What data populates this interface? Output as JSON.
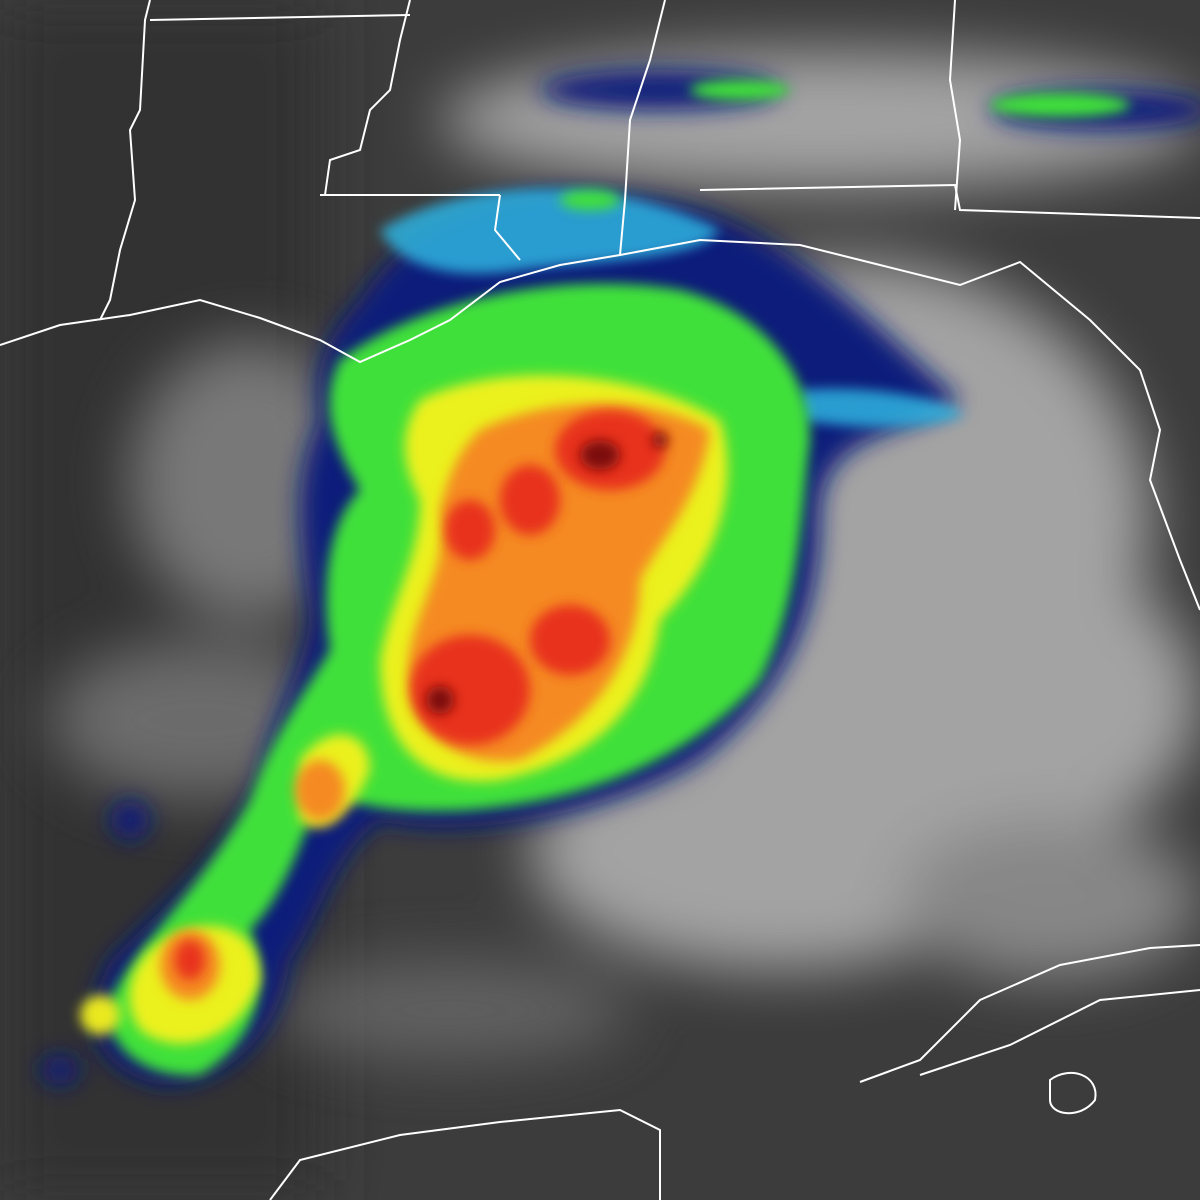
{
  "colors": {
    "background": "#3c3c3c",
    "cloud": "#d8d8d8",
    "navy": "#0a1f7a",
    "cyan": "#2fb3e0",
    "green": "#3fe03a",
    "lime": "#b8f020",
    "yellow": "#f5f21c",
    "orange": "#f58a20",
    "red": "#e8301a",
    "darkred": "#7a0a0a",
    "border": "#ffffff"
  }
}
